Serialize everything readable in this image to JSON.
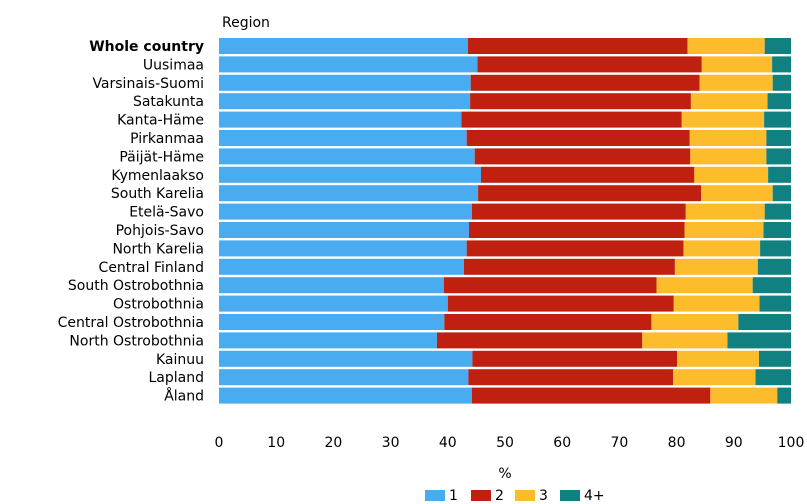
{
  "chart_data": {
    "type": "bar",
    "orientation": "horizontal",
    "stacked": true,
    "title": "Region",
    "xlabel": "%",
    "xlim": [
      0,
      100
    ],
    "xticks": [
      "0",
      "10",
      "20",
      "30",
      "40",
      "50",
      "60",
      "70",
      "80",
      "90",
      "100"
    ],
    "grid": false,
    "legend_position": "bottom",
    "categories": [
      "Whole country",
      "Uusimaa",
      "Varsinais-Suomi",
      "Satakunta",
      "Kanta-Häme",
      "Pirkanmaa",
      "Päijät-Häme",
      "Kymenlaakso",
      "South Karelia",
      "Etelä-Savo",
      "Pohjois-Savo",
      "North Karelia",
      "Central Finland",
      "South Ostrobothnia",
      "Ostrobothnia",
      "Central Ostrobothnia",
      "North Ostrobothnia",
      "Kainuu",
      "Lapland",
      "Åland"
    ],
    "bold_categories": [
      "Whole country"
    ],
    "series": [
      {
        "name": "1",
        "color": "#4aacf0",
        "values": [
          43.5,
          45.2,
          44.0,
          43.9,
          42.4,
          43.3,
          44.7,
          45.8,
          45.3,
          44.2,
          43.7,
          43.3,
          42.8,
          39.3,
          40.0,
          39.4,
          38.1,
          44.3,
          43.6,
          44.2
        ]
      },
      {
        "name": "2",
        "color": "#c02010",
        "values": [
          38.4,
          39.2,
          40.0,
          38.6,
          38.5,
          39.0,
          37.7,
          37.3,
          39.0,
          37.4,
          37.7,
          37.9,
          36.9,
          37.2,
          39.5,
          36.2,
          35.9,
          35.8,
          35.8,
          41.7
        ]
      },
      {
        "name": "3",
        "color": "#fcbc2c",
        "values": [
          13.5,
          12.3,
          12.8,
          13.4,
          14.4,
          13.4,
          13.3,
          12.9,
          12.5,
          13.8,
          13.8,
          13.4,
          14.5,
          16.8,
          15.0,
          15.2,
          14.9,
          14.3,
          14.4,
          11.7
        ]
      },
      {
        "name": "4+",
        "color": "#108080",
        "values": [
          4.6,
          3.3,
          3.2,
          4.1,
          4.7,
          4.3,
          4.3,
          4.0,
          3.2,
          4.6,
          4.8,
          5.4,
          5.8,
          6.7,
          5.5,
          9.2,
          11.1,
          5.6,
          6.2,
          2.4
        ]
      }
    ]
  }
}
